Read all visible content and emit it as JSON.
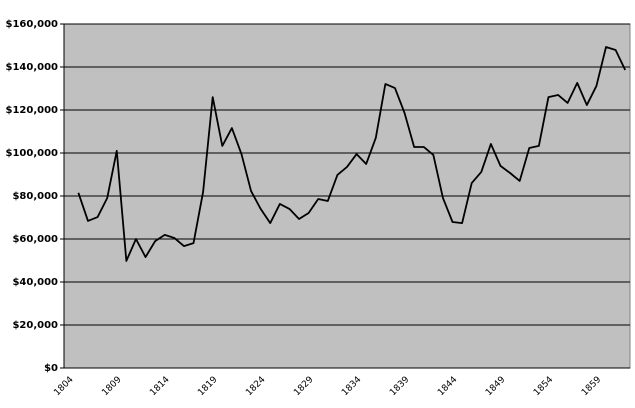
{
  "chart_data": {
    "type": "line",
    "categories": [
      "1804",
      null,
      null,
      null,
      null,
      "1809",
      null,
      null,
      null,
      null,
      "1814",
      null,
      null,
      null,
      null,
      "1819",
      null,
      null,
      null,
      null,
      "1824",
      null,
      null,
      null,
      null,
      "1829",
      null,
      null,
      null,
      null,
      "1834",
      null,
      null,
      null,
      null,
      "1839",
      null,
      null,
      null,
      null,
      "1844",
      null,
      null,
      null,
      null,
      "1849",
      null,
      null,
      null,
      null,
      "1854",
      null,
      null,
      null,
      null,
      "1859",
      null,
      null,
      null
    ],
    "values": [
      null,
      81500,
      68400,
      70200,
      79000,
      101000,
      49800,
      60000,
      51600,
      59000,
      61900,
      60500,
      56700,
      58100,
      81900,
      126000,
      103300,
      111600,
      99500,
      82300,
      74000,
      67400,
      76300,
      74000,
      69300,
      72100,
      78600,
      77700,
      89800,
      93500,
      99500,
      94900,
      107000,
      132100,
      130200,
      118600,
      102800,
      102800,
      99100,
      79100,
      67900,
      67400,
      86000,
      91200,
      104200,
      94000,
      90700,
      87000,
      102300,
      103300,
      126000,
      127000,
      123300,
      132600,
      122300,
      131200,
      149300,
      147900,
      138600
    ],
    "color": "#000000",
    "ylim": [
      0,
      160000
    ],
    "yticks": [
      {
        "value": 0,
        "label": "$0"
      },
      {
        "value": 20000,
        "label": "$20,000"
      },
      {
        "value": 40000,
        "label": "$40,000"
      },
      {
        "value": 60000,
        "label": "$60,000"
      },
      {
        "value": 80000,
        "label": "$80,000"
      },
      {
        "value": 100000,
        "label": "$100,000"
      },
      {
        "value": 120000,
        "label": "$120,000"
      },
      {
        "value": 140000,
        "label": "$140,000"
      },
      {
        "value": 160000,
        "label": "$160,000"
      }
    ],
    "grid": true
  }
}
